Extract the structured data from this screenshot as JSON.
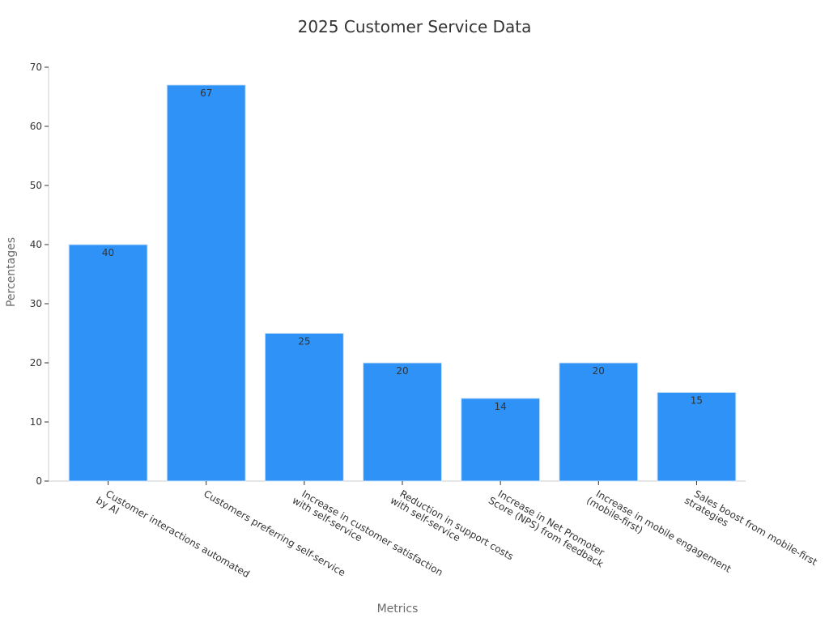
{
  "chart_data": {
    "type": "bar",
    "title": "2025 Customer Service Data",
    "xlabel": "Metrics",
    "ylabel": "Percentages",
    "ylim": [
      0,
      70
    ],
    "yticks": [
      0,
      10,
      20,
      30,
      40,
      50,
      60,
      70
    ],
    "grid": false,
    "bar_color": "#2f92f7",
    "bar_edge_color": "#cfe3fb",
    "categories": [
      [
        "Customer interactions automated",
        "by AI"
      ],
      [
        "Customers preferring self-service"
      ],
      [
        "Increase in customer satisfaction",
        "with self-service"
      ],
      [
        "Reduction in support costs",
        "with self-service"
      ],
      [
        "Increase in Net Promoter",
        "Score (NPS) from feedback"
      ],
      [
        "Increase in mobile engagement",
        "(mobile-first)"
      ],
      [
        "Sales boost from mobile-first",
        "strategies"
      ]
    ],
    "values": [
      40,
      67,
      25,
      20,
      14,
      20,
      15
    ]
  }
}
